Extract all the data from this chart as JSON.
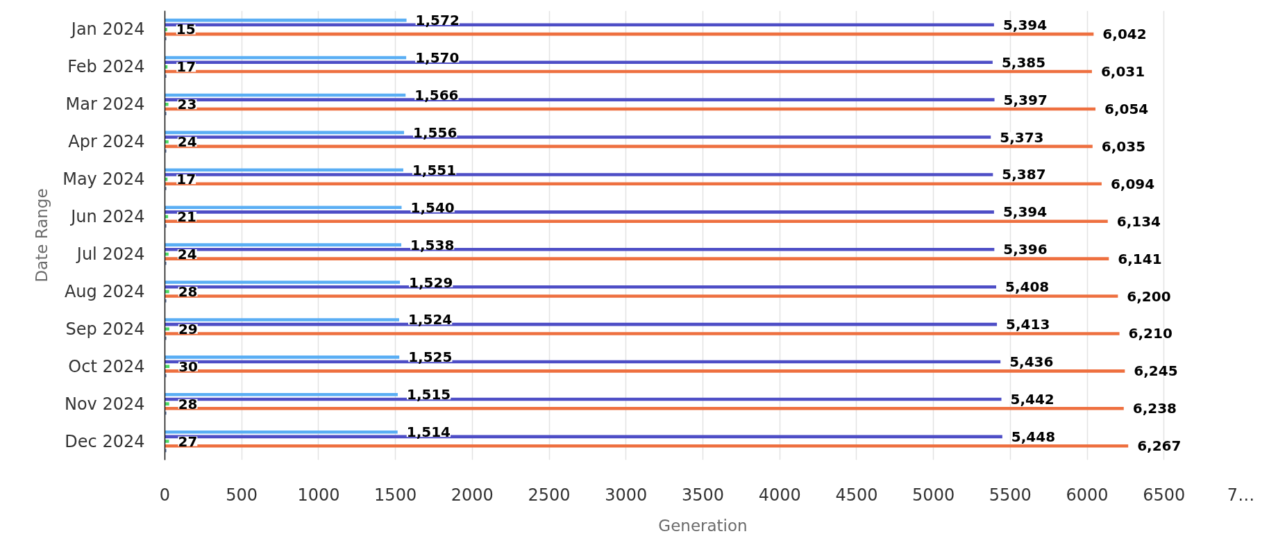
{
  "chart_data": {
    "type": "bar",
    "orientation": "horizontal",
    "xlabel": "Generation",
    "ylabel": "Date Range",
    "categories": [
      "Jan 2024",
      "Feb 2024",
      "Mar 2024",
      "Apr 2024",
      "May 2024",
      "Jun 2024",
      "Jul 2024",
      "Aug 2024",
      "Sep 2024",
      "Oct 2024",
      "Nov 2024",
      "Dec 2024"
    ],
    "series": [
      {
        "color": "#5aaef4",
        "values": [
          1572,
          1570,
          1566,
          1556,
          1551,
          1540,
          1538,
          1529,
          1524,
          1525,
          1515,
          1514
        ],
        "value_labels": [
          "1,572",
          "1,570",
          "1,566",
          "1,556",
          "1,551",
          "1,540",
          "1,538",
          "1,529",
          "1,524",
          "1,525",
          "1,515",
          "1,514"
        ]
      },
      {
        "color": "#4e4ec6",
        "values": [
          5394,
          5385,
          5397,
          5373,
          5387,
          5394,
          5396,
          5408,
          5413,
          5436,
          5442,
          5448
        ],
        "value_labels": [
          "5,394",
          "5,385",
          "5,397",
          "5,373",
          "5,387",
          "5,394",
          "5,396",
          "5,408",
          "5,413",
          "5,436",
          "5,442",
          "5,448"
        ]
      },
      {
        "color": "#4cd964",
        "values": [
          15,
          17,
          23,
          24,
          17,
          21,
          24,
          28,
          29,
          30,
          28,
          27
        ],
        "value_labels": [
          "15",
          "17",
          "23",
          "24",
          "17",
          "21",
          "24",
          "28",
          "29",
          "30",
          "28",
          "27"
        ]
      },
      {
        "color": "#ee7040",
        "values": [
          6042,
          6031,
          6054,
          6035,
          6094,
          6134,
          6141,
          6200,
          6210,
          6245,
          6238,
          6267
        ],
        "value_labels": [
          "6,042",
          "6,031",
          "6,054",
          "6,035",
          "6,094",
          "6,134",
          "6,141",
          "6,200",
          "6,210",
          "6,245",
          "6,238",
          "6,267"
        ]
      },
      {
        "color": "#6e82a8",
        "values": [
          10,
          10,
          10,
          10,
          10,
          10,
          10,
          10,
          10,
          10,
          10,
          10
        ]
      }
    ],
    "xlim": [
      0,
      7000
    ],
    "xticks": [
      0,
      500,
      1000,
      1500,
      2000,
      2500,
      3000,
      3500,
      4000,
      4500,
      5000,
      5500,
      6000,
      6500,
      {
        "value": 7000,
        "label": "7…"
      }
    ],
    "grid": "x"
  }
}
